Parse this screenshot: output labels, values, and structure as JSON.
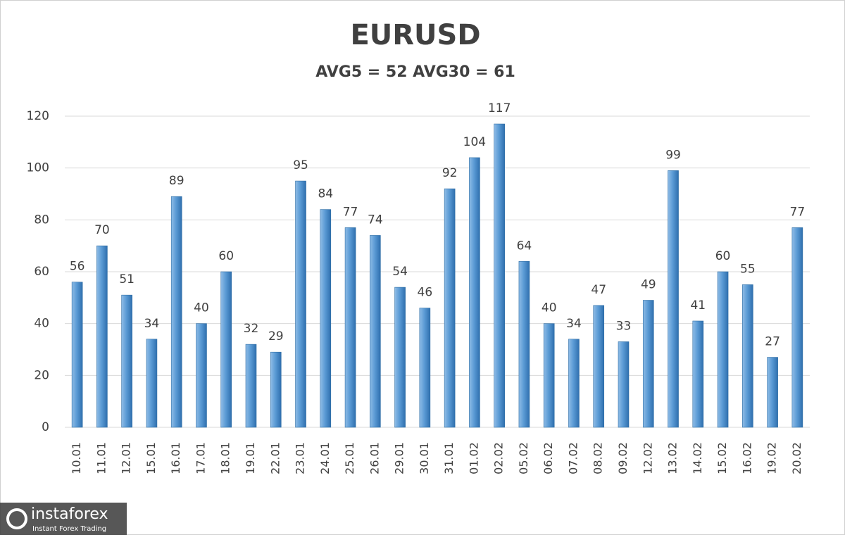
{
  "chart_data": {
    "type": "bar",
    "title": "EURUSD",
    "subtitle": "AVG5 = 52 AVG30 = 61",
    "categories": [
      "10.01",
      "11.01",
      "12.01",
      "15.01",
      "16.01",
      "17.01",
      "18.01",
      "19.01",
      "22.01",
      "23.01",
      "24.01",
      "25.01",
      "26.01",
      "29.01",
      "30.01",
      "31.01",
      "01.02",
      "02.02",
      "05.02",
      "06.02",
      "07.02",
      "08.02",
      "09.02",
      "12.02",
      "13.02",
      "14.02",
      "15.02",
      "16.02",
      "19.02",
      "20.02"
    ],
    "values": [
      56,
      70,
      51,
      34,
      89,
      40,
      60,
      32,
      29,
      95,
      84,
      77,
      74,
      54,
      46,
      92,
      104,
      117,
      64,
      40,
      34,
      47,
      33,
      49,
      99,
      41,
      60,
      55,
      27,
      77
    ],
    "color": "#5b9bd5",
    "ylim": [
      0,
      120
    ],
    "yticks": [
      0,
      20,
      40,
      60,
      80,
      100,
      120
    ],
    "grid": true
  },
  "watermark": {
    "brand": "instaforex",
    "tagline": "Instant Forex Trading"
  }
}
